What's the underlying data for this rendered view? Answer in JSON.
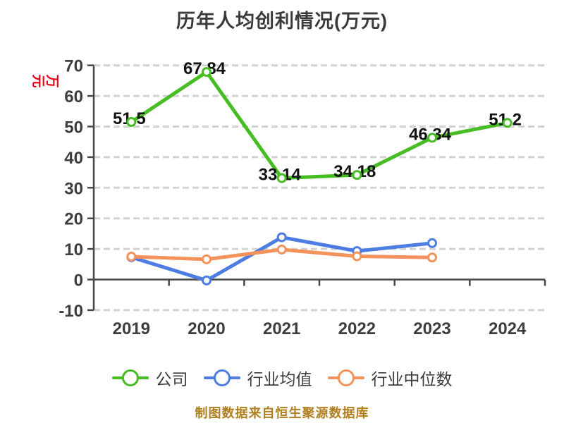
{
  "chart_data": {
    "type": "line",
    "title": "历年人均创利情况(万元)",
    "y_axis_label": "万元",
    "source_note": "制图数据来自恒生聚源数据库",
    "x": [
      "2019",
      "2020",
      "2021",
      "2022",
      "2023",
      "2024"
    ],
    "ylim": [
      -10,
      70
    ],
    "y_tick_step": 10,
    "y_ticks": [
      -10,
      0,
      10,
      20,
      30,
      40,
      50,
      60,
      70
    ],
    "grid": "horizontal-dashed",
    "legend_position": "bottom",
    "series": [
      {
        "name": "公司",
        "color": "#46bd22",
        "values": [
          51.5,
          67.84,
          33.14,
          34.18,
          46.34,
          51.2
        ],
        "data_labels": [
          "51.5",
          "67.84",
          "33.14",
          "34.18",
          "46.34",
          "51.2"
        ]
      },
      {
        "name": "行业均值",
        "color": "#4d7ce2",
        "values": [
          7.3,
          -0.3,
          13.8,
          9.3,
          11.9,
          null
        ],
        "data_labels": null
      },
      {
        "name": "行业中位数",
        "color": "#f4925c",
        "values": [
          7.5,
          6.6,
          9.8,
          7.6,
          7.2,
          null
        ],
        "data_labels": null
      }
    ],
    "colors": {
      "title_text": "#3a3a3a",
      "tick_text": "#3d3d3d",
      "data_label_text": "#121212",
      "gridline": "#d2d2d2",
      "axis": "#474747",
      "y_axis_title": "#e60012",
      "source_note": "#b08020",
      "marker_fill": "#ffffff"
    }
  }
}
